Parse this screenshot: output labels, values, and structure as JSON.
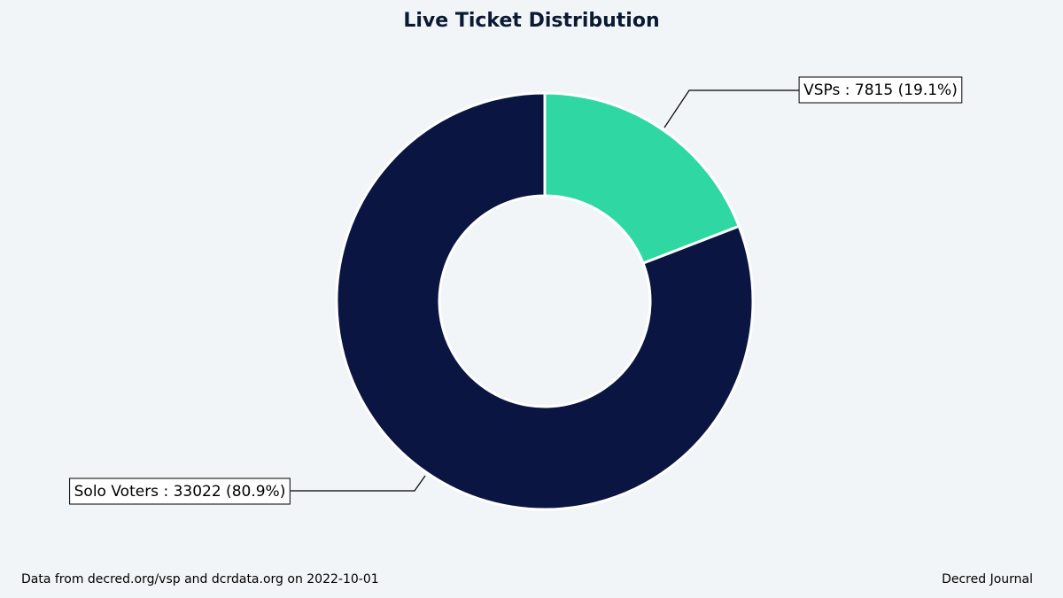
{
  "chart_data": {
    "type": "pie",
    "variant": "donut",
    "title": "Live Ticket Distribution",
    "start_angle_deg": 90,
    "direction": "clockwise",
    "slices": [
      {
        "label": "VSPs",
        "value": 7815,
        "percent": 19.1,
        "color": "#2fd8a3",
        "callout": "VSPs : 7815 (19.1%)"
      },
      {
        "label": "Solo Voters",
        "value": 33022,
        "percent": 80.9,
        "color": "#0a1541",
        "callout": "Solo Voters : 33022 (80.9%)"
      }
    ],
    "slice_border_color": "#ffffff",
    "legend": "none"
  },
  "footer": {
    "source": "Data from decred.org/vsp and dcrdata.org on 2022-10-01",
    "credit": "Decred Journal"
  },
  "colors": {
    "background": "#f2f5f7",
    "title": "#0a1a33",
    "callout_box_border": "#000000",
    "callout_line": "#000000"
  }
}
